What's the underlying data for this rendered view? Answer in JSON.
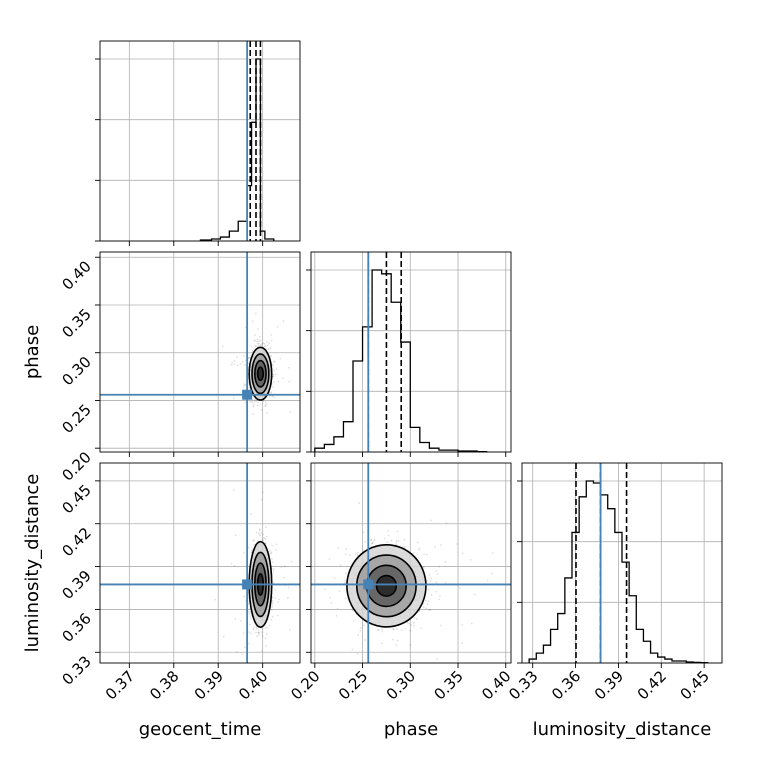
{
  "chart_data": {
    "type": "corner",
    "parameters": [
      "geocent_time",
      "phase",
      "luminosity_distance"
    ],
    "truths": {
      "geocent_time": 0.3965,
      "phase": 0.256,
      "luminosity_distance": 0.3775
    },
    "ranges": {
      "geocent_time": [
        0.3634,
        0.4084
      ],
      "phase": [
        0.196,
        0.4055
      ],
      "luminosity_distance": [
        0.3225,
        0.4625
      ]
    },
    "ticks": {
      "geocent_time": [
        0.37,
        0.38,
        0.39,
        0.4
      ],
      "phase": [
        0.2,
        0.25,
        0.3,
        0.35,
        0.4
      ],
      "luminosity_distance": [
        0.33,
        0.36,
        0.39,
        0.42,
        0.45
      ]
    },
    "tick_labels": {
      "geocent_time": [
        "0.37",
        "0.38",
        "0.39",
        "0.40"
      ],
      "phase": [
        "0.20",
        "0.25",
        "0.30",
        "0.35",
        "0.40"
      ],
      "luminosity_distance": [
        "0.33",
        "0.36",
        "0.39",
        "0.42",
        "0.45"
      ]
    },
    "quantiles": {
      "geocent_time": [
        0.3972,
        0.3985,
        0.3995
      ],
      "phase": [
        0.256,
        0.275,
        0.2905
      ],
      "luminosity_distance": [
        0.3603,
        0.3775,
        0.3957
      ]
    },
    "histograms": {
      "geocent_time": {
        "bin_edges": [
          0.386,
          0.3885,
          0.3905,
          0.3925,
          0.3945,
          0.3965,
          0.3975,
          0.3985,
          0.3995,
          0.4005,
          0.4025
        ],
        "counts": [
          0.005,
          0.01,
          0.02,
          0.05,
          0.1,
          0.28,
          0.6,
          0.92,
          0.05,
          0.01
        ]
      },
      "phase": {
        "bin_edges": [
          0.2,
          0.21,
          0.22,
          0.23,
          0.24,
          0.25,
          0.26,
          0.27,
          0.28,
          0.29,
          0.3,
          0.31,
          0.32,
          0.33,
          0.34,
          0.35,
          0.36,
          0.37,
          0.38
        ],
        "counts": [
          0.02,
          0.04,
          0.08,
          0.16,
          0.48,
          0.66,
          0.96,
          0.94,
          0.79,
          0.58,
          0.13,
          0.05,
          0.02,
          0.01,
          0.01,
          0.005,
          0.005,
          0.002
        ]
      },
      "luminosity_distance": {
        "bin_edges": [
          0.3275,
          0.3325,
          0.3375,
          0.3425,
          0.3475,
          0.3525,
          0.3575,
          0.3625,
          0.3675,
          0.3725,
          0.3775,
          0.3825,
          0.3875,
          0.3925,
          0.3975,
          0.4025,
          0.4075,
          0.4125,
          0.4175,
          0.4225,
          0.4275,
          0.4325,
          0.4375,
          0.4425,
          0.4475,
          0.4525
        ],
        "counts": [
          0.02,
          0.05,
          0.09,
          0.17,
          0.25,
          0.43,
          0.66,
          0.84,
          0.92,
          0.91,
          0.85,
          0.78,
          0.66,
          0.51,
          0.34,
          0.17,
          0.11,
          0.05,
          0.03,
          0.02,
          0.01,
          0.01,
          0.005,
          0.003,
          0.002
        ]
      }
    },
    "pairs": [
      {
        "x": "geocent_time",
        "y": "phase",
        "center": [
          0.3995,
          0.278
        ],
        "sigma": [
          0.0011,
          0.012
        ],
        "rho": 0.0
      },
      {
        "x": "geocent_time",
        "y": "luminosity_distance",
        "center": [
          0.3995,
          0.3775
        ],
        "sigma": [
          0.0011,
          0.013
        ],
        "rho": 0.0
      },
      {
        "x": "phase",
        "y": "luminosity_distance",
        "center": [
          0.275,
          0.3765
        ],
        "sigma": [
          0.018,
          0.0125
        ],
        "rho": 0.0
      }
    ],
    "contour_levels_sigma": [
      0.5,
      1.0,
      1.5,
      2.0
    ]
  }
}
